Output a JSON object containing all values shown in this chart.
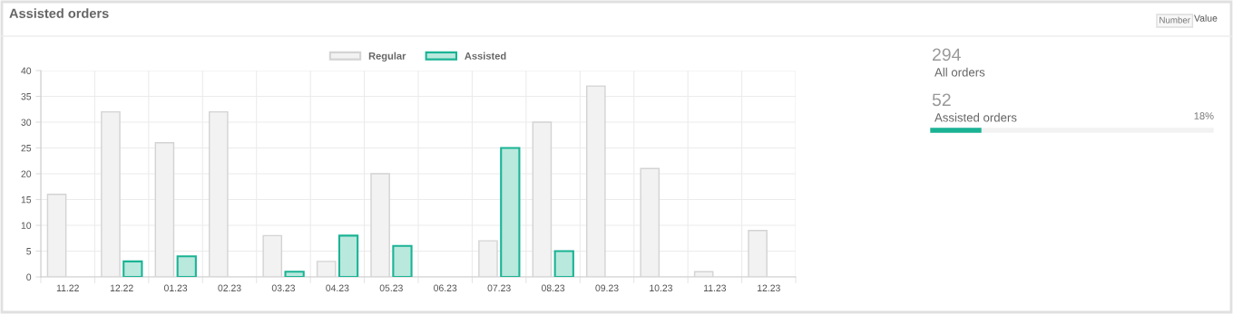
{
  "chart_data": [
    {
      "type": "bar",
      "title": "Assisted orders",
      "categories": [
        "11.22",
        "12.22",
        "01.23",
        "02.23",
        "03.23",
        "04.23",
        "05.23",
        "06.23",
        "07.23",
        "08.23",
        "09.23",
        "10.23",
        "11.23",
        "12.23"
      ],
      "series": [
        {
          "name": "Regular",
          "color": "#f2f2f2",
          "values": [
            16,
            32,
            26,
            32,
            8,
            3,
            20,
            0,
            7,
            30,
            37,
            21,
            1,
            9
          ]
        },
        {
          "name": "Assisted",
          "color": "#b9e8dd",
          "values": [
            0,
            3,
            4,
            0,
            1,
            8,
            6,
            0,
            25,
            5,
            0,
            0,
            0,
            0
          ]
        }
      ],
      "ylim": [
        0,
        40
      ],
      "yticks": [
        0,
        5,
        10,
        15,
        20,
        25,
        30,
        35,
        40
      ],
      "grid": true,
      "legend": "top"
    },
    {
      "type": "other",
      "categories": [
        "All orders",
        "Assisted orders"
      ],
      "values": [
        294,
        52
      ],
      "data_labels": true,
      "color": "#1ab394",
      "annotations": [
        "18%",
        "Number",
        "Value"
      ]
    }
  ]
}
